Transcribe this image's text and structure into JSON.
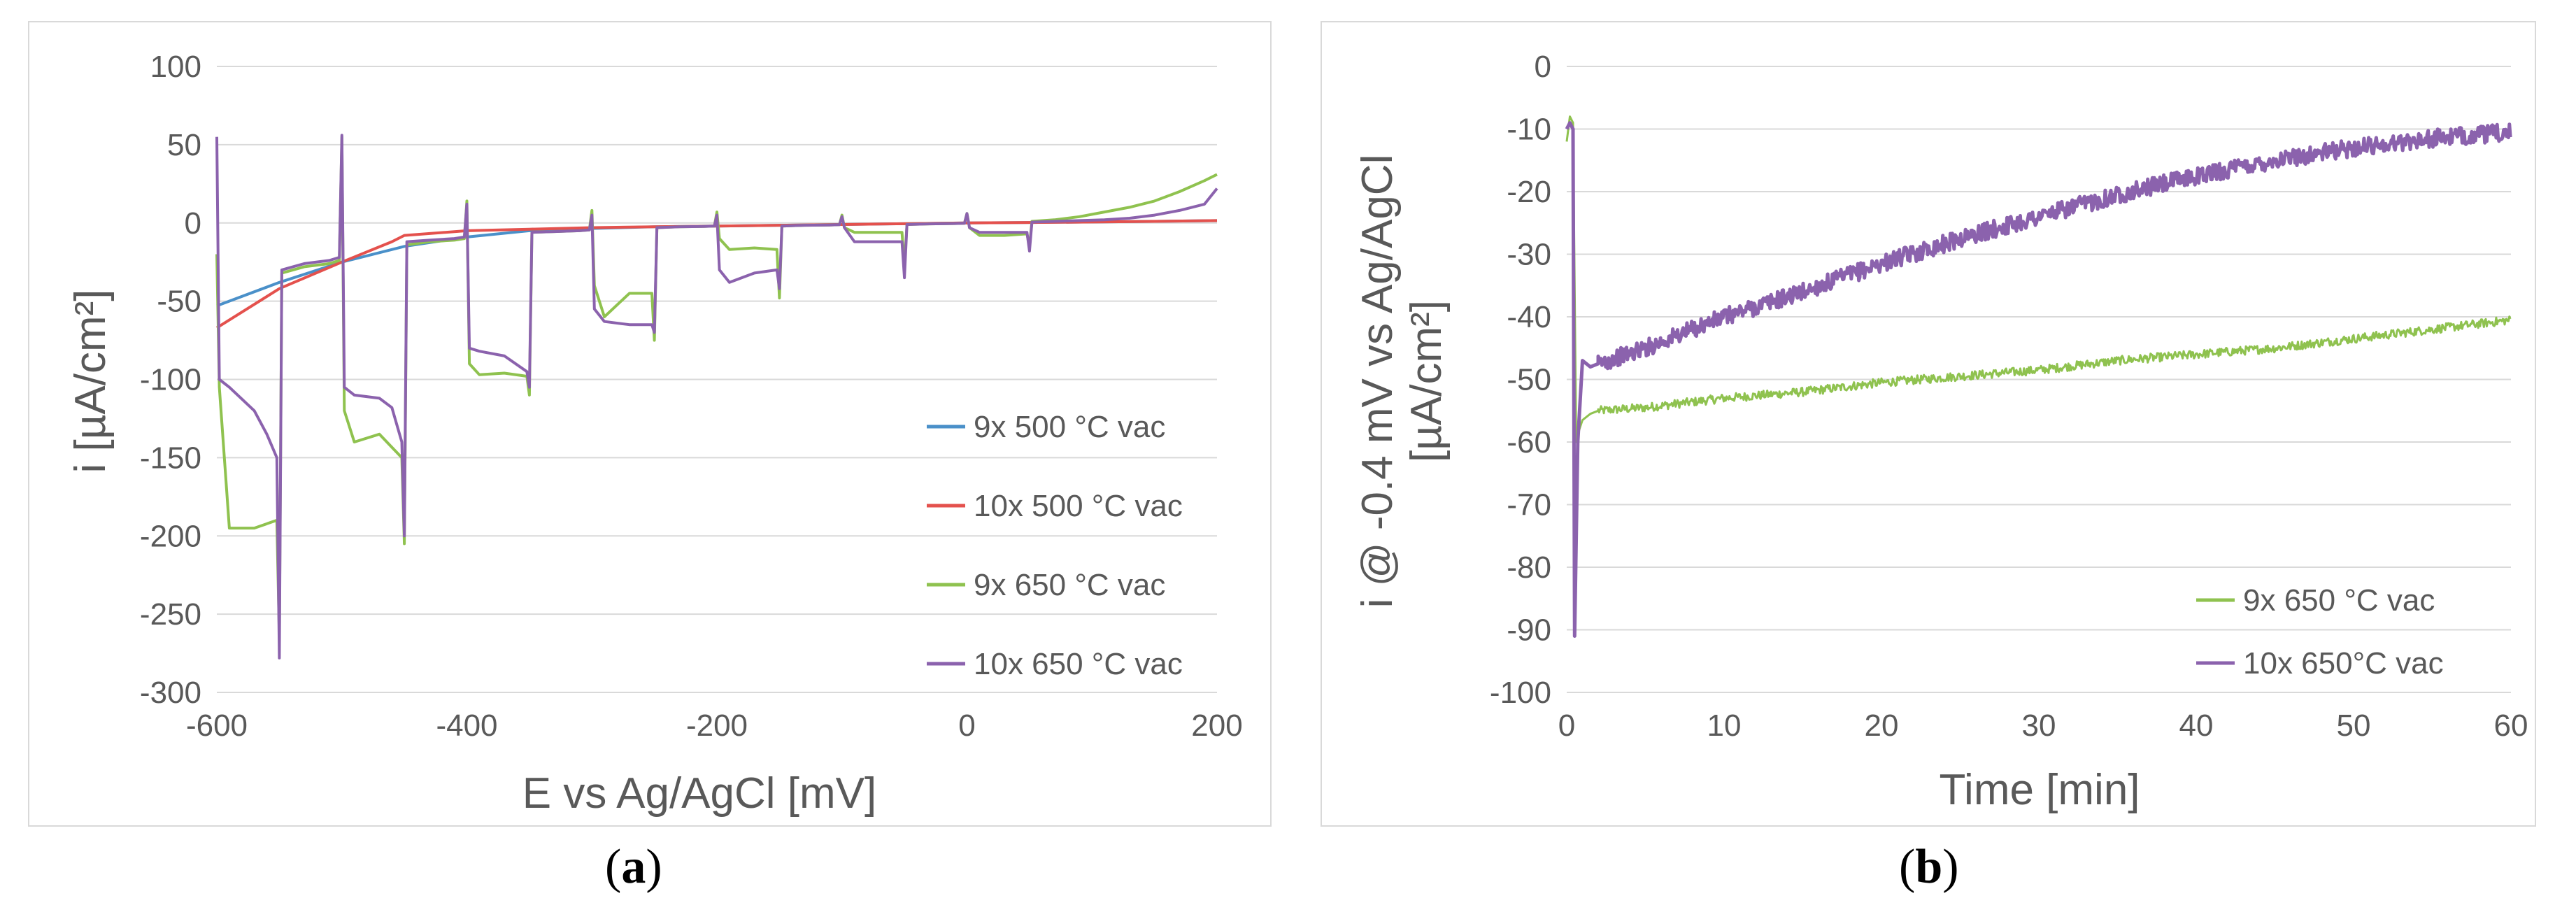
{
  "chart_data": [
    {
      "id": "a",
      "type": "line",
      "xlabel": "E vs Ag/AgCl [mV]",
      "ylabel": "i [µA/cm²]",
      "xlim": [
        -600,
        200
      ],
      "ylim": [
        -300,
        100
      ],
      "xticks": [
        -600,
        -400,
        -200,
        0,
        200
      ],
      "yticks": [
        100,
        50,
        0,
        -50,
        -100,
        -150,
        -200,
        -250,
        -300
      ],
      "grid": "horizontal",
      "legend_position": "right",
      "series": [
        {
          "name": "9x 500 °C vac",
          "color": "#4a90c9",
          "x": [
            -600,
            -550,
            -500,
            -450,
            -400,
            -350,
            -300,
            -250,
            -200,
            -150,
            -100,
            -50,
            0,
            50,
            100,
            150,
            200
          ],
          "y": [
            -53,
            -38,
            -25,
            -15,
            -9,
            -5,
            -3.5,
            -2.5,
            -2,
            -1.5,
            -1,
            -0.5,
            0,
            0.3,
            0.6,
            1,
            1.5
          ]
        },
        {
          "name": "10x 500 °C vac",
          "color": "#e4514d",
          "x": [
            -600,
            -550,
            -500,
            -460,
            -450,
            -400,
            -350,
            -300,
            -250,
            -200,
            -150,
            -100,
            -50,
            0,
            50,
            100,
            150,
            200
          ],
          "y": [
            -67,
            -42,
            -25,
            -12,
            -8,
            -5,
            -4,
            -3,
            -2.5,
            -2,
            -1.5,
            -1,
            -0.5,
            0,
            0.3,
            0.6,
            1,
            1.5
          ]
        },
        {
          "name": "9x 650 °C vac",
          "color": "#8fc24f",
          "x": [
            -600,
            -598,
            -590,
            -570,
            -552,
            -550,
            -548,
            -530,
            -510,
            -502,
            -500,
            -498,
            -490,
            -470,
            -452,
            -450,
            -448,
            -430,
            -410,
            -402,
            -400,
            -398,
            -390,
            -370,
            -352,
            -350,
            -348,
            -330,
            -310,
            -302,
            -300,
            -298,
            -290,
            -270,
            -252,
            -250,
            -248,
            -230,
            -210,
            -202,
            -200,
            -198,
            -190,
            -170,
            -152,
            -150,
            -148,
            -130,
            -110,
            -102,
            -100,
            -98,
            -90,
            -70,
            -52,
            -50,
            -48,
            -30,
            -10,
            -2,
            0,
            2,
            10,
            30,
            48,
            50,
            52,
            70,
            90,
            110,
            130,
            150,
            170,
            190,
            200
          ],
          "y": [
            -20,
            -105,
            -195,
            -195,
            -190,
            -265,
            -32,
            -28,
            -26,
            -24,
            55,
            -120,
            -140,
            -135,
            -150,
            -205,
            -14,
            -12,
            -11,
            -10,
            14,
            -90,
            -97,
            -96,
            -98,
            -110,
            -6,
            -5.5,
            -5,
            -4.5,
            8,
            -40,
            -60,
            -45,
            -45,
            -75,
            -3,
            -2.5,
            -2.2,
            -2,
            7,
            -10,
            -17,
            -16,
            -17,
            -48,
            -2,
            -1.5,
            -1.3,
            -1.1,
            5,
            -3,
            -6,
            -6,
            -6,
            -28,
            -1,
            -0.6,
            -0.4,
            -0.2,
            6,
            -3,
            -8,
            -8,
            -7,
            -15,
            1,
            2,
            4,
            7,
            10,
            14,
            20,
            27,
            31
          ]
        },
        {
          "name": "10x 650 °C vac",
          "color": "#8b62ad",
          "x": [
            -600,
            -598,
            -590,
            -570,
            -560,
            -552,
            -550,
            -548,
            -530,
            -510,
            -502,
            -500,
            -498,
            -490,
            -470,
            -460,
            -452,
            -450,
            -448,
            -430,
            -410,
            -402,
            -400,
            -398,
            -390,
            -370,
            -352,
            -350,
            -348,
            -330,
            -310,
            -302,
            -300,
            -298,
            -290,
            -270,
            -252,
            -250,
            -248,
            -230,
            -210,
            -202,
            -200,
            -198,
            -190,
            -170,
            -152,
            -150,
            -148,
            -130,
            -110,
            -102,
            -100,
            -98,
            -90,
            -70,
            -52,
            -50,
            -48,
            -30,
            -10,
            -2,
            0,
            2,
            10,
            30,
            48,
            50,
            52,
            70,
            90,
            110,
            130,
            150,
            170,
            190,
            200
          ],
          "y": [
            55,
            -100,
            -105,
            -120,
            -135,
            -150,
            -278,
            -30,
            -26,
            -24,
            -22,
            56,
            -105,
            -110,
            -112,
            -118,
            -140,
            -200,
            -12,
            -11,
            -10,
            -9,
            12,
            -80,
            -82,
            -85,
            -95,
            -105,
            -6,
            -5.5,
            -5,
            -4.5,
            5,
            -55,
            -63,
            -65,
            -65,
            -70,
            -3,
            -2.5,
            -2.2,
            -2,
            5,
            -30,
            -38,
            -32,
            -30,
            -42,
            -2,
            -1.5,
            -1.3,
            -1.1,
            4,
            -3,
            -12,
            -12,
            -12,
            -35,
            -1,
            -0.6,
            -0.4,
            -0.2,
            6,
            -3,
            -6,
            -6,
            -6,
            -18,
            0.5,
            1,
            1.5,
            2,
            3,
            5,
            8,
            12,
            22
          ]
        }
      ],
      "caption_letter": "a"
    },
    {
      "id": "b",
      "type": "line",
      "xlabel": "Time [min]",
      "ylabel_line1": "i @ -0.4 mV vs Ag/AgCl",
      "ylabel_line2": "[µA/cm²]",
      "xlim": [
        0,
        60
      ],
      "ylim": [
        -100,
        0
      ],
      "xticks": [
        0,
        10,
        20,
        30,
        40,
        50,
        60
      ],
      "yticks": [
        0,
        -10,
        -20,
        -30,
        -40,
        -50,
        -60,
        -70,
        -80,
        -90,
        -100
      ],
      "grid": "horizontal",
      "legend_position": "bottom-right",
      "series": [
        {
          "name": "9x 650 °C vac",
          "color": "#8fc24f",
          "x": [
            0,
            0.2,
            0.4,
            0.6,
            0.8,
            1,
            1.5,
            2,
            5,
            10,
            15,
            20,
            25,
            30,
            35,
            40,
            45,
            50,
            55,
            60
          ],
          "y": [
            -12,
            -8,
            -9,
            -60,
            -58,
            -56.5,
            -55.5,
            -55,
            -54.5,
            -53,
            -52,
            -50.5,
            -49.5,
            -48.5,
            -47,
            -46,
            -45,
            -43.5,
            -42,
            -40.5
          ]
        },
        {
          "name": "10x 650°C vac",
          "color": "#8b62ad",
          "x": [
            0,
            0.2,
            0.4,
            0.5,
            0.7,
            1,
            1.5,
            2,
            5,
            10,
            15,
            20,
            25,
            30,
            35,
            40,
            45,
            50,
            55,
            60
          ],
          "y": [
            -10,
            -9,
            -10,
            -91,
            -60,
            -47,
            -48,
            -47.5,
            -45,
            -40,
            -36,
            -31.5,
            -27.5,
            -24,
            -20.5,
            -17.5,
            -15,
            -13,
            -11.5,
            -10.5
          ]
        }
      ],
      "caption_letter": "b"
    }
  ],
  "captions": {
    "a": "a",
    "b": "b"
  }
}
